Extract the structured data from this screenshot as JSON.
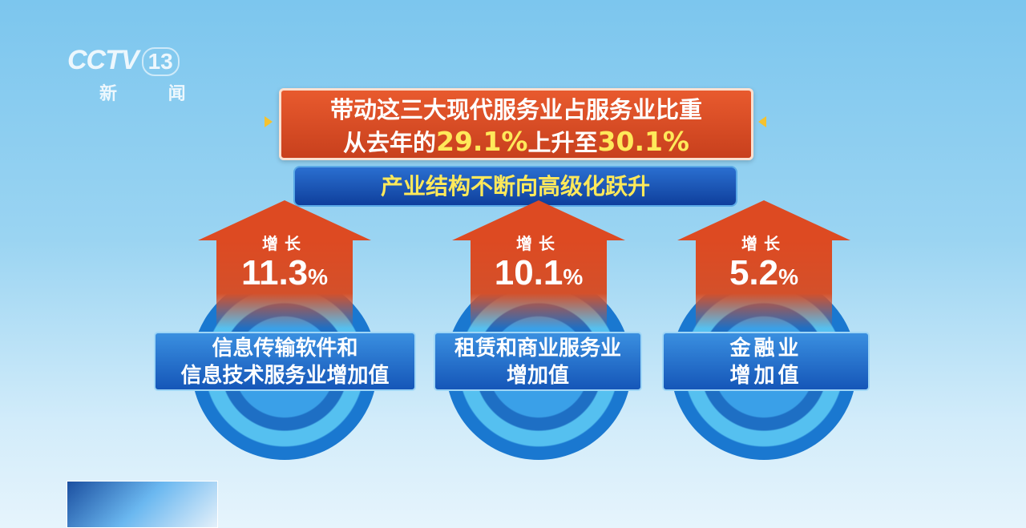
{
  "logo": {
    "brand": "CCTV",
    "channel": "13",
    "name": "新 闻"
  },
  "header": {
    "line1": "带动这三大现代服务业占服务业比重",
    "line2_a": "从去年的",
    "from_value": "29.1%",
    "line2_b": "上升至",
    "to_value": "30.1%"
  },
  "subtitle": "产业结构不断向高级化跃升",
  "items": [
    {
      "label": "增长",
      "value": "11.3",
      "unit": "%",
      "line1": "信息传输软件和",
      "line2": "信息技术服务业增加值"
    },
    {
      "label": "增长",
      "value": "10.1",
      "unit": "%",
      "line1": "租赁和商业服务业",
      "line2": "增加值"
    },
    {
      "label": "增长",
      "value": "5.2",
      "unit": "%",
      "line1": "金融业",
      "line2": "增加值"
    }
  ],
  "colors": {
    "arrow": "#dd4a22",
    "highlight": "#ffe95a",
    "box": "#1556b8"
  }
}
